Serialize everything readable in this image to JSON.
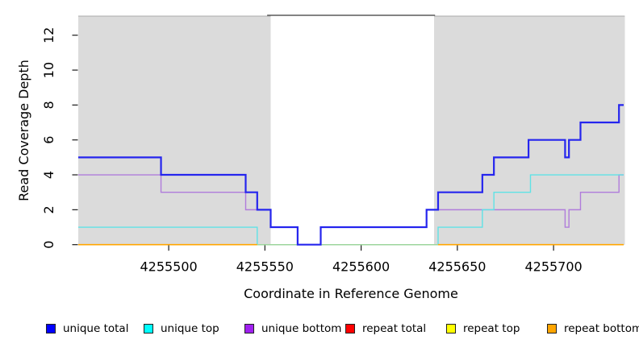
{
  "page": {
    "background": "#ffffff"
  },
  "axes": {
    "xlabel": "Coordinate in Reference Genome",
    "ylabel": "Read Coverage Depth",
    "xtick_labels": [
      "4255500",
      "4255550",
      "4255600",
      "4255650",
      "4255700"
    ],
    "ytick_labels": [
      "0",
      "2",
      "4",
      "6",
      "8",
      "10",
      "12"
    ]
  },
  "legend": {
    "items": [
      {
        "label": "unique total",
        "color": "#0000FF"
      },
      {
        "label": "unique top",
        "color": "#00FFFF"
      },
      {
        "label": "unique bottom",
        "color": "#A020F0"
      },
      {
        "label": "repeat total",
        "color": "#FF0000"
      },
      {
        "label": "repeat top",
        "color": "#FFFF00"
      },
      {
        "label": "repeat bottom",
        "color": "#FFA500"
      }
    ]
  },
  "chart_data": {
    "type": "line",
    "step": true,
    "title": "",
    "xlabel": "Coordinate in Reference Genome",
    "ylabel": "Read Coverage Depth",
    "xlim": [
      4255453,
      4255737
    ],
    "ylim": [
      0,
      13.1
    ],
    "xticks": [
      4255500,
      4255550,
      4255600,
      4255650,
      4255700
    ],
    "yticks": [
      0,
      2,
      4,
      6,
      8,
      10,
      12
    ],
    "grid": false,
    "legend_position": "bottom",
    "shaded_regions": [
      {
        "name": "left-gray-region",
        "x0": 4255453,
        "x1": 4255553,
        "color": "#DBDBDB",
        "top_edge_color": "#ABABAB"
      },
      {
        "name": "right-gray-region",
        "x0": 4255638,
        "x1": 4255737,
        "color": "#DBDBDB",
        "top_edge_color": "#ABABAB"
      }
    ],
    "gap_region": {
      "x0": 4255553,
      "x1": 4255638,
      "color": "#FFFFFF"
    },
    "gap_top_border": {
      "x0": 4255552,
      "x1": 4255638,
      "color": "#5A5A5A"
    },
    "series": [
      {
        "name": "unique total",
        "color": "#2525EE",
        "legend_color": "#0000FF",
        "line_width": 2.2,
        "steps": [
          [
            4255453,
            5
          ],
          [
            4255496,
            4
          ],
          [
            4255540,
            3
          ],
          [
            4255546,
            2
          ],
          [
            4255553,
            1
          ],
          [
            4255567,
            0
          ],
          [
            4255579,
            1
          ],
          [
            4255634,
            2
          ],
          [
            4255640,
            3
          ],
          [
            4255663,
            4
          ],
          [
            4255669,
            5
          ],
          [
            4255687,
            6
          ],
          [
            4255706,
            5
          ],
          [
            4255708,
            6
          ],
          [
            4255714,
            7
          ],
          [
            4255734,
            8
          ]
        ],
        "end": 4255737
      },
      {
        "name": "unique top",
        "color": "#5FE2E6",
        "legend_color": "#00FFFF",
        "line_width": 1.4,
        "steps": [
          [
            4255453,
            1
          ],
          [
            4255546,
            0
          ],
          [
            4255640,
            1
          ],
          [
            4255663,
            2
          ],
          [
            4255669,
            3
          ],
          [
            4255688,
            4
          ]
        ],
        "end": 4255737
      },
      {
        "name": "unique bottom",
        "color": "#B07CDB",
        "legend_color": "#A020F0",
        "line_width": 1.4,
        "steps": [
          [
            4255453,
            4
          ],
          [
            4255496,
            3
          ],
          [
            4255540,
            2
          ],
          [
            4255553,
            1
          ],
          [
            4255567,
            0
          ],
          [
            4255579,
            1
          ],
          [
            4255634,
            2
          ],
          [
            4255706,
            1
          ],
          [
            4255708,
            2
          ],
          [
            4255714,
            3
          ],
          [
            4255734,
            4
          ]
        ],
        "end": 4255737
      },
      {
        "name": "repeat total",
        "color": "#E00000",
        "legend_color": "#FF0000",
        "line_width": 1.3,
        "steps": [
          [
            4255453,
            0
          ]
        ],
        "end": 4255737
      },
      {
        "name": "repeat top",
        "color": "#F0F000",
        "legend_color": "#FFFF00",
        "line_width": 1.3,
        "steps": [
          [
            4255453,
            0
          ]
        ],
        "end": 4255737
      },
      {
        "name": "repeat bottom",
        "color": "#FFA500",
        "legend_color": "#FFA500",
        "line_width": 1.7,
        "steps": [
          [
            4255453,
            0
          ]
        ],
        "end": 4255737,
        "gaps": [
          [
            4255546,
            4255640
          ]
        ]
      }
    ],
    "baseline_overlay": {
      "x0": 4255546,
      "x1": 4255640,
      "value": 0,
      "color": "#9CD59C",
      "line_width": 1.5
    },
    "draw_order": [
      "repeat total",
      "repeat top",
      "unique bottom",
      "unique top",
      "__baseline_overlay__",
      "repeat bottom",
      "unique total"
    ]
  }
}
